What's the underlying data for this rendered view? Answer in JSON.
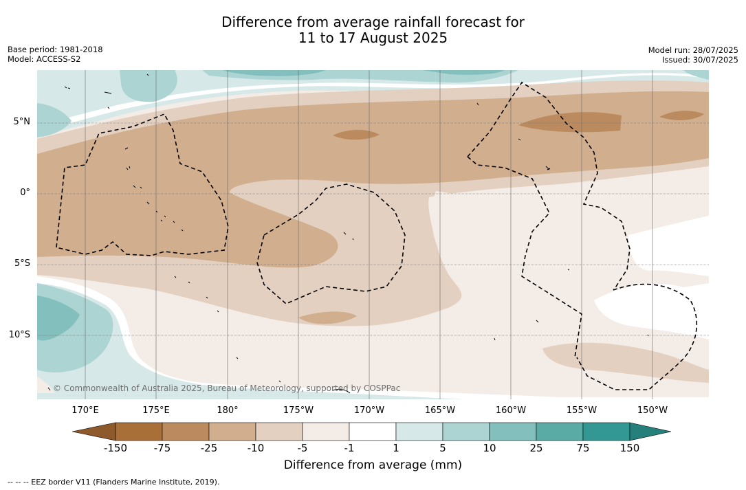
{
  "title": {
    "line1": "Difference from average rainfall forecast for",
    "line2": "11 to 17 August 2025"
  },
  "meta_left": {
    "base_period": "Base period: 1981-2018",
    "model": "Model: ACCESS-S2"
  },
  "meta_right": {
    "model_run": "Model run: 28/07/2025",
    "issued": "Issued: 30/07/2025"
  },
  "map": {
    "latitude_labels": [
      "5°N",
      "0°",
      "5°S",
      "10°S"
    ],
    "longitude_labels": [
      "170°E",
      "175°E",
      "180°",
      "175°W",
      "170°W",
      "165°W",
      "160°W",
      "155°W",
      "150°W"
    ],
    "copyright": "© Commonwealth of Australia 2025, Bureau of Meteorology, supported by COSPPac",
    "colors": {
      "neg150": "#a87038",
      "neg75": "#bb8b5f",
      "neg25": "#d0ae8e",
      "neg10": "#e3d0c0",
      "neg5": "#f4ece6",
      "neutral": "#ffffff",
      "pos1": "#d6e9e8",
      "pos5": "#abd4d3",
      "pos10": "#82bfbd",
      "pos25": "#5aaaa6",
      "pos75": "#339893"
    }
  },
  "colorbar": {
    "ticks": [
      "-150",
      "-75",
      "-25",
      "-10",
      "-5",
      "-1",
      "1",
      "5",
      "10",
      "25",
      "75",
      "150"
    ],
    "colors": [
      "#a87038",
      "#bb8b5f",
      "#d0ae8e",
      "#e3d0c0",
      "#f4ece6",
      "#ffffff",
      "#d6e9e8",
      "#abd4d3",
      "#82bfbd",
      "#5aaaa6",
      "#339893"
    ],
    "under_color": "#8f5a2b",
    "over_color": "#25807c",
    "label": "Difference from average (mm)"
  },
  "footnote": "--  --  -- EEZ border V11 (Flanders Marine Institute, 2019)."
}
